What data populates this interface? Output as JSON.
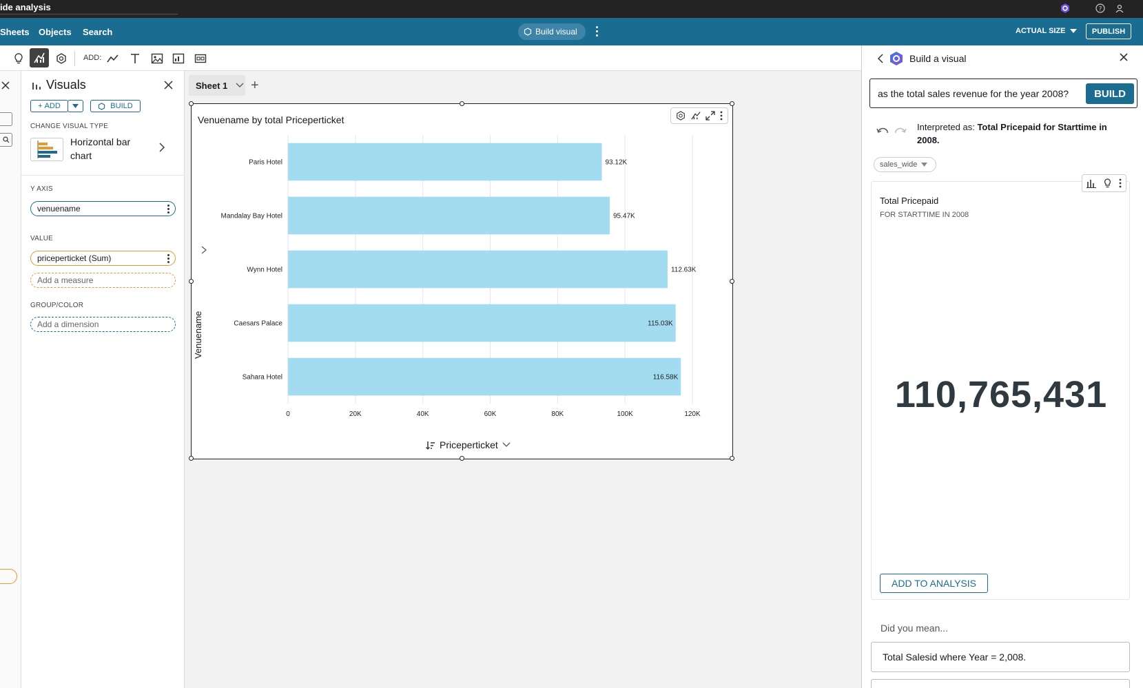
{
  "window": {
    "title": "ide analysis"
  },
  "topnav": {
    "items": [
      "Sheets",
      "Objects",
      "Search"
    ],
    "build_visual_label": "Build visual",
    "zoom_label": "ACTUAL SIZE",
    "publish_label": "PUBLISH"
  },
  "toolbar": {
    "add_label": "ADD:"
  },
  "visuals_panel": {
    "title": "Visuals",
    "add_label": "ADD",
    "build_label": "BUILD",
    "change_type_label": "CHANGE VISUAL TYPE",
    "visual_type": "Horizontal bar chart",
    "y_axis_label": "Y AXIS",
    "y_axis_field": "venuename",
    "value_label": "VALUE",
    "value_field": "priceperticket (Sum)",
    "add_measure": "Add a measure",
    "group_label": "GROUP/COLOR",
    "add_dimension": "Add a dimension"
  },
  "sheet": {
    "tab_label": "Sheet 1"
  },
  "chart_data": {
    "type": "bar",
    "orientation": "horizontal",
    "title": "Venuename by total Priceperticket",
    "xlabel": "Priceperticket",
    "ylabel": "Venuename",
    "categories": [
      "Paris Hotel",
      "Mandalay Bay Hotel",
      "Wynn Hotel",
      "Caesars Palace",
      "Sahara Hotel"
    ],
    "values": [
      93120,
      95470,
      112630,
      115030,
      116580
    ],
    "data_labels": [
      "93.12K",
      "95.47K",
      "112.63K",
      "115.03K",
      "116.58K"
    ],
    "x_ticks": [
      "0",
      "20K",
      "40K",
      "60K",
      "80K",
      "100K",
      "120K"
    ],
    "xlim": [
      0,
      120000
    ],
    "grid": true,
    "bar_color": "#a3dcf0"
  },
  "q_panel": {
    "title": "Build a visual",
    "query": "as the total sales revenue for the year 2008?",
    "build_label": "BUILD",
    "interpreted_prefix": "Interpreted as:",
    "interpreted_text": "Total Pricepaid for Starttime in 2008.",
    "dataset": "sales_wide",
    "kpi": {
      "title": "Total Pricepaid",
      "subtitle": "FOR STARTTIME IN 2008",
      "value": "110,765,431"
    },
    "add_to_analysis": "ADD TO ANALYSIS",
    "did_you_mean": "Did you mean...",
    "suggestions": [
      "Total Salesid where Year = 2,008."
    ]
  }
}
